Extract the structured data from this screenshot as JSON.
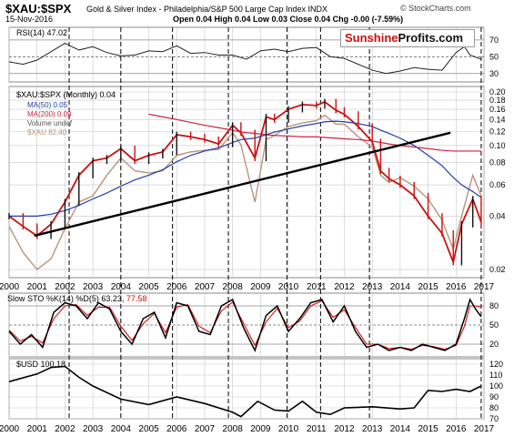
{
  "header": {
    "symbol": "$XAU:$SPX",
    "subtitle": "Gold & Silver Index - Philadelphia/S&P 500 Large Cap Index  INDX",
    "date": "15-Nov-2016",
    "ohlc": "Open 0.04  High 0.04  Low 0.03  Close 0.04  Chg -0.00 (-7.59%)",
    "source": "© StockCharts.com"
  },
  "brand": {
    "part1": "Sunshine",
    "part2": "Profits.com"
  },
  "colors": {
    "price_up": "#111111",
    "price_down": "#cc1111",
    "ma50": "#1f3ea8",
    "ma200": "#cc2244",
    "xau": "#b8957a",
    "trend": "#000000",
    "stoch_k": "#000000",
    "stoch_d": "#cc1111",
    "rsi": "#222222",
    "usd": "#000000",
    "grid": "#c8c8c8",
    "cycle": "#000000"
  },
  "legend": {
    "rsi": "RSI(14) 47.02",
    "main": "$XAU:$SPX (Monthly) 0.04",
    "ma50": "MA(50) 0.05",
    "ma200": "MA(200) 0.09",
    "volume": "Volume undef",
    "xau": "$XAU 82.40",
    "sto_prefix": "Slow STO %K(14) %D(5) 63.23,",
    "sto_d": "77.58",
    "usd": "$USD 100.18"
  },
  "axes": {
    "years": [
      "2000",
      "2001",
      "2002",
      "2003",
      "2004",
      "2005",
      "2006",
      "2007",
      "2008",
      "2009",
      "2010",
      "2011",
      "2012",
      "2013",
      "2014",
      "2015",
      "2016",
      "2017"
    ],
    "rsi_ticks": [
      "70",
      "50",
      "30"
    ],
    "price_ticks": [
      "0.20",
      "0.18",
      "0.16",
      "0.14",
      "0.12",
      "0.10",
      "0.08",
      "0.06",
      "0.04",
      "0.02"
    ],
    "sto_ticks": [
      "80",
      "50",
      "20"
    ],
    "usd_ticks": [
      "120",
      "110",
      "100",
      "90",
      "80",
      "70"
    ],
    "cycle_lines": [
      2002.15,
      2004.0,
      2005.85,
      2007.85,
      2009.95,
      2011.15,
      2012.9,
      2016.9
    ]
  },
  "chart_data": [
    {
      "type": "line",
      "title": "RSI(14) 47.02",
      "ylim": [
        20,
        85
      ],
      "x": [
        2000.0,
        2000.5,
        2001.0,
        2001.5,
        2002.0,
        2002.5,
        2003.0,
        2003.5,
        2004.0,
        2004.5,
        2005.0,
        2005.5,
        2006.0,
        2006.5,
        2007.0,
        2007.5,
        2008.0,
        2008.5,
        2009.0,
        2009.5,
        2010.0,
        2010.5,
        2011.0,
        2011.5,
        2012.0,
        2012.5,
        2013.0,
        2013.5,
        2014.0,
        2014.5,
        2015.0,
        2015.5,
        2016.0,
        2016.3,
        2016.5,
        2016.9
      ],
      "series": [
        {
          "values": [
            44,
            41,
            46,
            56,
            66,
            58,
            62,
            55,
            51,
            52,
            57,
            56,
            63,
            54,
            55,
            52,
            52,
            47,
            57,
            59,
            56,
            60,
            61,
            50,
            48,
            41,
            34,
            30,
            33,
            37,
            35,
            34,
            55,
            62,
            52,
            47
          ]
        }
      ]
    },
    {
      "type": "line",
      "title": "$XAU:$SPX (Monthly) 0.04",
      "ylim": [
        0.02,
        0.2
      ],
      "x": [
        2000.0,
        2000.5,
        2001.0,
        2001.5,
        2002.0,
        2002.5,
        2003.0,
        2003.5,
        2004.0,
        2004.5,
        2005.0,
        2005.5,
        2006.0,
        2006.5,
        2007.0,
        2007.5,
        2008.0,
        2008.3,
        2008.8,
        2009.2,
        2009.5,
        2010.0,
        2010.5,
        2011.0,
        2011.3,
        2011.7,
        2012.0,
        2012.5,
        2013.0,
        2013.3,
        2013.6,
        2014.0,
        2014.5,
        2015.0,
        2015.5,
        2015.9,
        2016.2,
        2016.6,
        2016.9
      ],
      "series": [
        {
          "name": "$XAU:$SPX (Monthly) 0.04",
          "values": [
            0.04,
            0.035,
            0.031,
            0.036,
            0.048,
            0.068,
            0.082,
            0.085,
            0.096,
            0.082,
            0.088,
            0.092,
            0.115,
            0.112,
            0.108,
            0.102,
            0.13,
            0.118,
            0.085,
            0.145,
            0.14,
            0.16,
            0.17,
            0.168,
            0.176,
            0.158,
            0.15,
            0.128,
            0.105,
            0.072,
            0.065,
            0.06,
            0.052,
            0.04,
            0.032,
            0.022,
            0.036,
            0.05,
            0.037
          ]
        },
        {
          "name": "MA(50) 0.05",
          "values": [
            0.04,
            0.04,
            0.04,
            0.041,
            0.043,
            0.046,
            0.05,
            0.054,
            0.059,
            0.064,
            0.068,
            0.073,
            0.081,
            0.088,
            0.093,
            0.097,
            0.104,
            0.108,
            0.11,
            0.115,
            0.119,
            0.124,
            0.129,
            0.133,
            0.136,
            0.137,
            0.136,
            0.133,
            0.128,
            0.122,
            0.117,
            0.11,
            0.1,
            0.088,
            0.077,
            0.066,
            0.06,
            0.055,
            0.051
          ]
        },
        {
          "name": "MA(200) 0.09",
          "values": [
            null,
            null,
            null,
            null,
            null,
            null,
            null,
            null,
            null,
            null,
            0.15,
            0.145,
            0.14,
            0.135,
            0.13,
            0.126,
            0.122,
            0.119,
            0.117,
            0.115,
            0.114,
            0.113,
            0.112,
            0.112,
            0.111,
            0.11,
            0.109,
            0.108,
            0.106,
            0.104,
            0.102,
            0.1,
            0.098,
            0.096,
            0.094,
            0.093,
            0.093,
            0.093,
            0.093
          ]
        },
        {
          "name": "$XAU 82.40",
          "values": [
            0.035,
            0.025,
            0.02,
            0.023,
            0.034,
            0.048,
            0.052,
            0.068,
            0.085,
            0.072,
            0.07,
            0.072,
            0.088,
            0.092,
            0.094,
            0.095,
            0.118,
            0.101,
            0.048,
            0.108,
            0.114,
            0.128,
            0.134,
            0.138,
            0.148,
            0.132,
            0.132,
            0.112,
            0.098,
            0.068,
            0.062,
            0.066,
            0.059,
            0.05,
            0.038,
            0.026,
            0.04,
            0.068,
            0.052
          ]
        }
      ]
    },
    {
      "type": "line",
      "title": "Slow STO %K(14) %D(5) 63.23, 77.58",
      "ylim": [
        0,
        100
      ],
      "x": [
        2000.0,
        2000.4,
        2000.8,
        2001.2,
        2001.6,
        2002.0,
        2002.4,
        2002.8,
        2003.2,
        2003.6,
        2004.0,
        2004.4,
        2004.8,
        2005.2,
        2005.6,
        2006.0,
        2006.4,
        2006.8,
        2007.2,
        2007.6,
        2008.0,
        2008.4,
        2008.8,
        2009.2,
        2009.6,
        2010.0,
        2010.4,
        2010.8,
        2011.2,
        2011.6,
        2012.0,
        2012.4,
        2012.8,
        2013.2,
        2013.6,
        2014.0,
        2014.4,
        2014.8,
        2015.2,
        2015.6,
        2016.0,
        2016.3,
        2016.5,
        2016.7,
        2016.9
      ],
      "series": [
        {
          "name": "%K",
          "values": [
            40,
            20,
            35,
            15,
            70,
            85,
            80,
            60,
            85,
            75,
            40,
            20,
            60,
            70,
            30,
            85,
            80,
            40,
            35,
            80,
            90,
            45,
            10,
            65,
            80,
            40,
            60,
            85,
            90,
            55,
            80,
            40,
            15,
            20,
            10,
            15,
            10,
            20,
            15,
            10,
            20,
            60,
            90,
            75,
            63
          ]
        },
        {
          "name": "%D",
          "values": [
            42,
            25,
            32,
            22,
            60,
            80,
            82,
            65,
            78,
            78,
            48,
            26,
            52,
            68,
            38,
            78,
            82,
            48,
            38,
            72,
            86,
            52,
            18,
            55,
            76,
            46,
            56,
            80,
            88,
            62,
            74,
            46,
            20,
            20,
            13,
            15,
            12,
            18,
            16,
            12,
            18,
            48,
            80,
            80,
            78
          ]
        }
      ]
    },
    {
      "type": "line",
      "title": "$USD 100.18",
      "ylim": [
        70,
        125
      ],
      "x": [
        2000.0,
        2001.0,
        2001.5,
        2002.0,
        2002.5,
        2003.0,
        2004.0,
        2005.0,
        2006.0,
        2007.0,
        2008.0,
        2008.3,
        2008.9,
        2009.5,
        2010.0,
        2010.5,
        2011.0,
        2011.5,
        2012.0,
        2013.0,
        2014.0,
        2014.5,
        2015.0,
        2015.5,
        2016.0,
        2016.5,
        2016.9
      ],
      "series": [
        {
          "name": "$USD 100.18",
          "values": [
            104,
            111,
            117,
            118,
            108,
            100,
            88,
            83,
            90,
            84,
            76,
            72,
            86,
            78,
            77,
            86,
            76,
            74,
            80,
            81,
            79,
            80,
            96,
            95,
            97,
            95,
            100
          ]
        }
      ]
    }
  ]
}
